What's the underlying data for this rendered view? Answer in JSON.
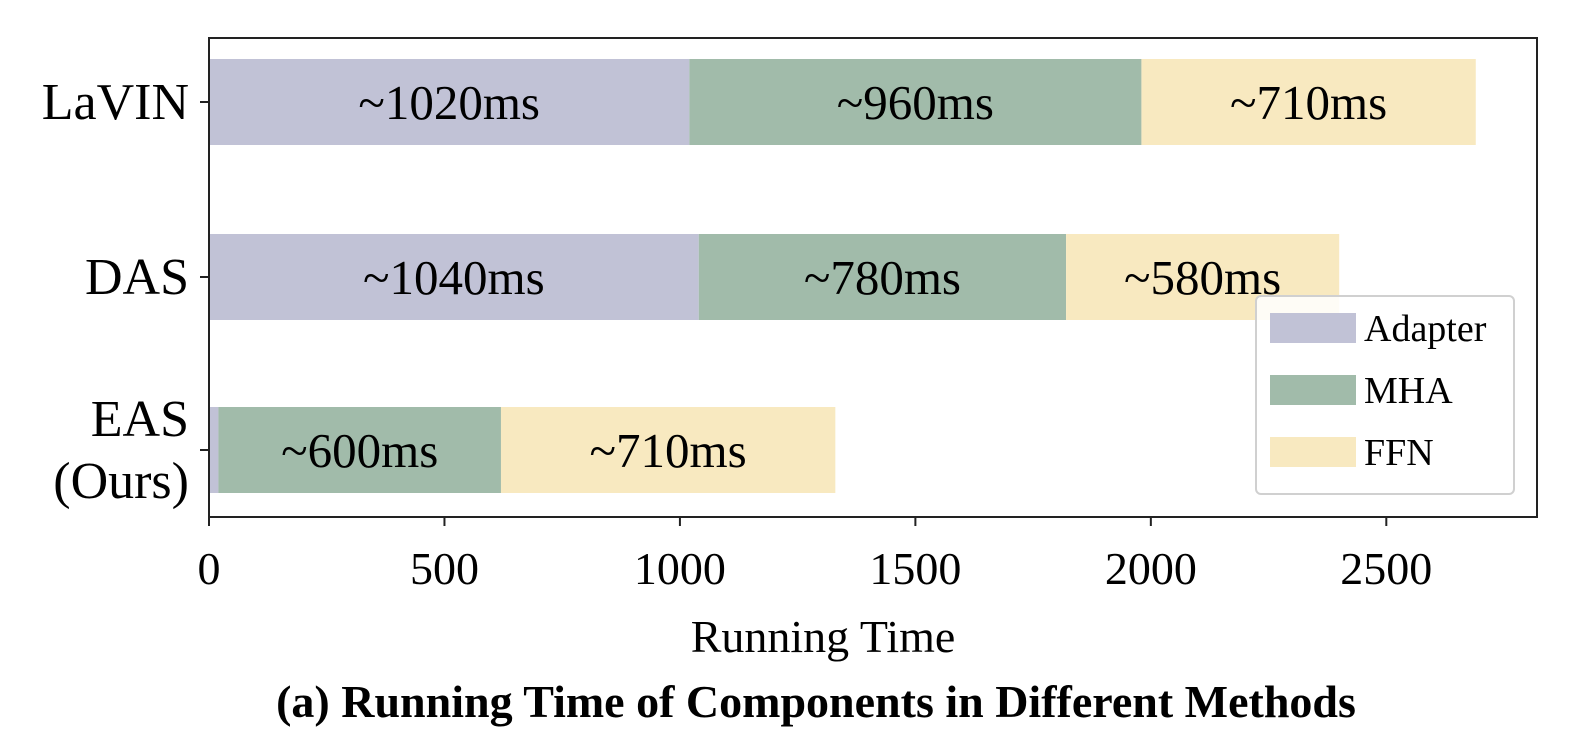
{
  "chart_data": {
    "type": "bar",
    "orientation": "horizontal",
    "stacked": true,
    "categories": [
      "LaVIN",
      "DAS",
      "EAS\n(Ours)"
    ],
    "series": [
      {
        "name": "Adapter",
        "values": [
          1020,
          1040,
          20
        ],
        "labels": [
          "~1020ms",
          "~1040ms",
          ""
        ]
      },
      {
        "name": "MHA",
        "values": [
          960,
          780,
          600
        ],
        "labels": [
          "~960ms",
          "~780ms",
          "~600ms"
        ]
      },
      {
        "name": "FFN",
        "values": [
          710,
          580,
          710
        ],
        "labels": [
          "~710ms",
          "~580ms",
          "~710ms"
        ]
      }
    ],
    "colors": [
      "#c1c2d6",
      "#a1bbaa",
      "#f8e9c0"
    ],
    "xlabel": "Running Time",
    "ylabel": "",
    "xlim": [
      0,
      2820
    ],
    "xticks": [
      0,
      500,
      1000,
      1500,
      2000,
      2500
    ],
    "grid": false,
    "legend": "lower-right"
  },
  "caption": "(a) Running Time of Components in Different Methods"
}
